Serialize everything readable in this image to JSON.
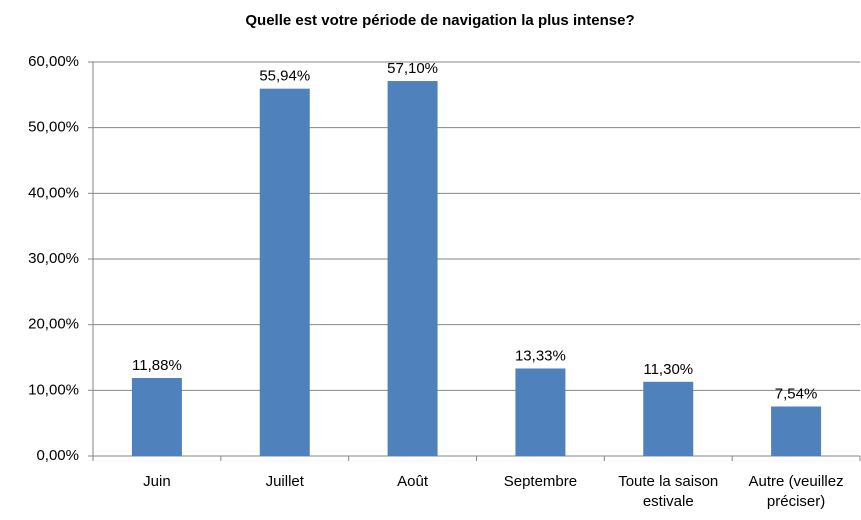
{
  "chart_data": {
    "type": "bar",
    "title": "Quelle est votre période de navigation la plus intense?",
    "categories": [
      "Juin",
      "Juillet",
      "Août",
      "Septembre",
      "Toute la saison estivale",
      "Autre (veuillez préciser)"
    ],
    "values": [
      11.88,
      55.94,
      57.1,
      13.33,
      11.3,
      7.54
    ],
    "value_labels": [
      "11,88%",
      "55,94%",
      "57,10%",
      "13,33%",
      "11,30%",
      "7,54%"
    ],
    "color": "#4f81bd",
    "ylim": [
      0,
      60
    ],
    "yticks": [
      {
        "value": 0,
        "label": "0,00%"
      },
      {
        "value": 10,
        "label": "10,00%"
      },
      {
        "value": 20,
        "label": "20,00%"
      },
      {
        "value": 30,
        "label": "30,00%"
      },
      {
        "value": 40,
        "label": "40,00%"
      },
      {
        "value": 50,
        "label": "50,00%"
      },
      {
        "value": 60,
        "label": "60,00%"
      }
    ],
    "grid": true
  }
}
